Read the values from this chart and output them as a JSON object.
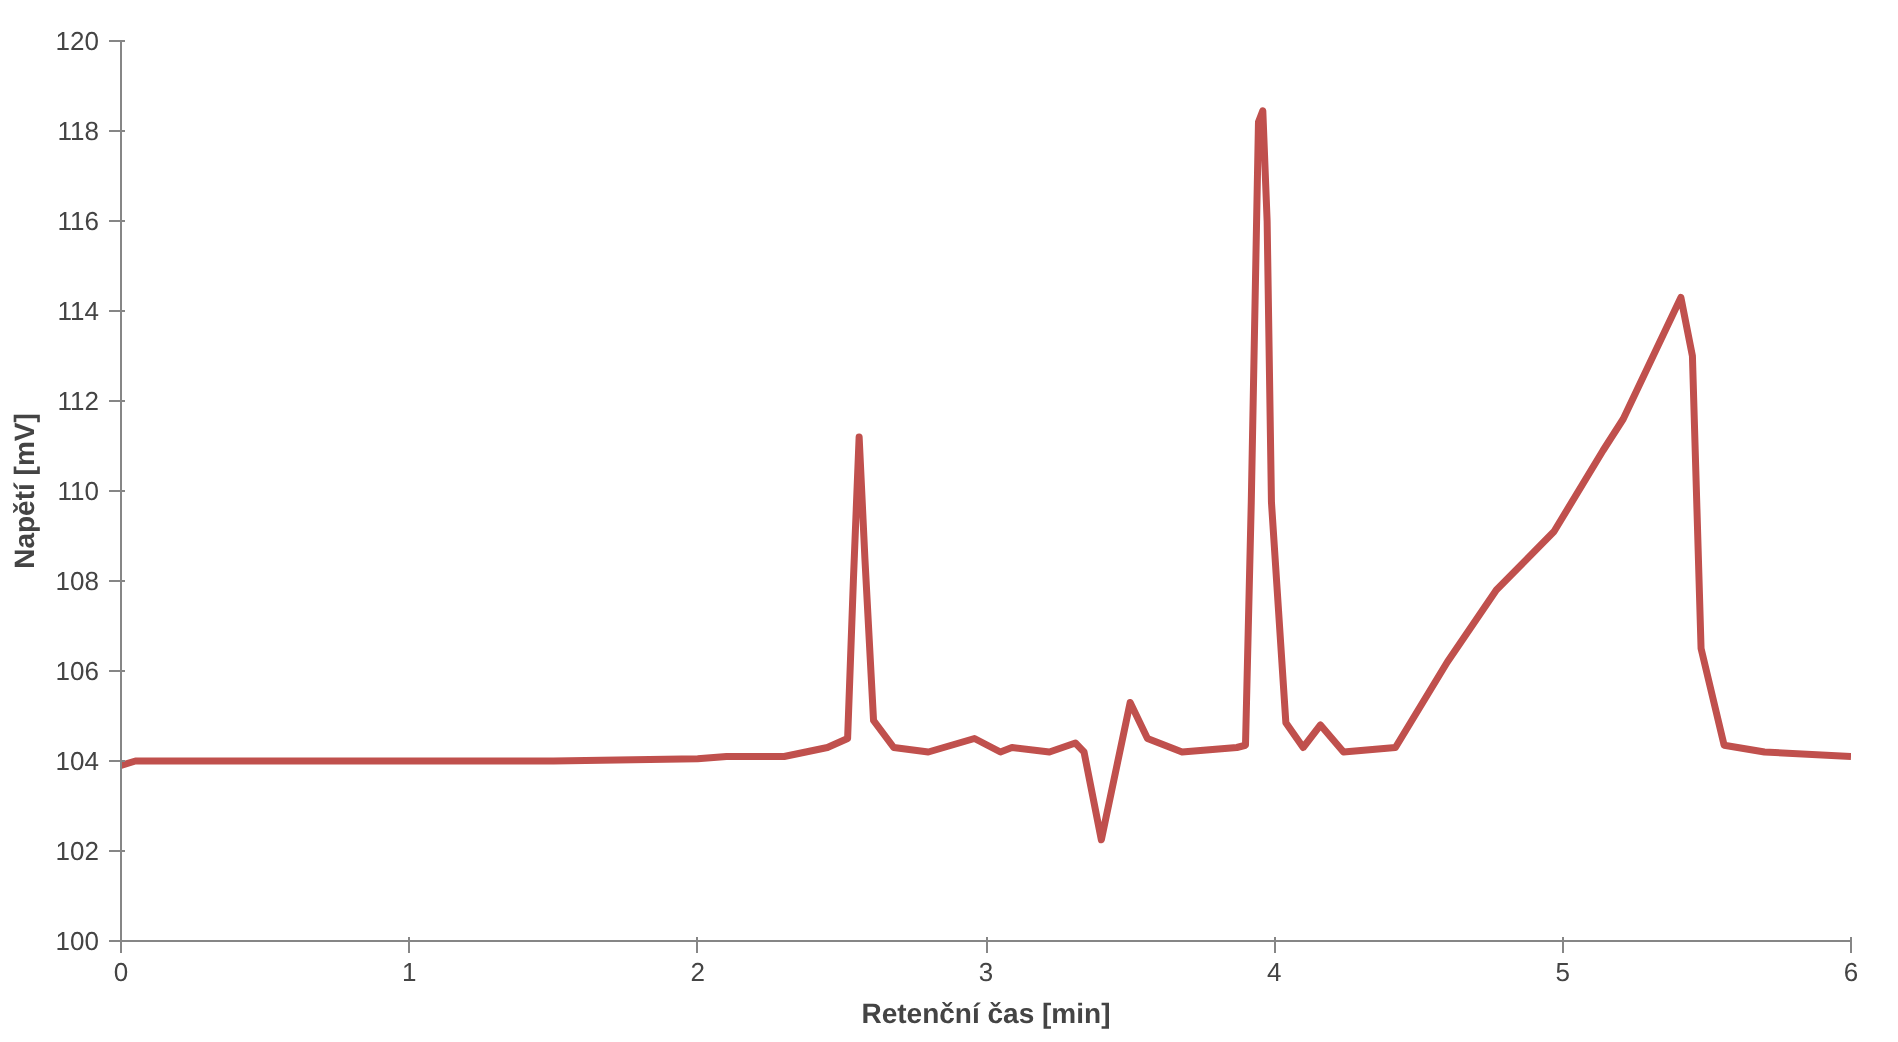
{
  "chart_data": {
    "type": "line",
    "xlabel": "Retenční čas [min]",
    "ylabel": "Napětí [mV]",
    "x": [
      0,
      0.05,
      0.5,
      1.0,
      1.5,
      2.0,
      2.1,
      2.3,
      2.45,
      2.52,
      2.54,
      2.56,
      2.58,
      2.61,
      2.68,
      2.8,
      2.96,
      3.05,
      3.09,
      3.22,
      3.31,
      3.34,
      3.4,
      3.5,
      3.56,
      3.68,
      3.87,
      3.9,
      3.92,
      3.945,
      3.96,
      3.975,
      3.99,
      4.04,
      4.1,
      4.16,
      4.24,
      4.42,
      4.6,
      4.77,
      4.97,
      5.14,
      5.21,
      5.41,
      5.45,
      5.48,
      5.56,
      5.7,
      6.0
    ],
    "series": [
      {
        "color": "#c0504d",
        "values": [
          103.9,
          104.0,
          104.0,
          104.0,
          104.0,
          104.05,
          104.1,
          104.1,
          104.3,
          104.5,
          108.0,
          111.2,
          108.5,
          104.9,
          104.3,
          104.2,
          104.5,
          104.2,
          104.3,
          104.2,
          104.4,
          104.2,
          102.25,
          105.3,
          104.5,
          104.2,
          104.3,
          104.35,
          109.75,
          118.2,
          118.45,
          116.0,
          109.75,
          104.85,
          104.3,
          104.8,
          104.2,
          104.3,
          106.2,
          107.8,
          109.1,
          110.9,
          111.6,
          114.3,
          113.0,
          106.5,
          104.35,
          104.2,
          104.1
        ]
      }
    ],
    "xlim": [
      0,
      6
    ],
    "xticks": [
      0,
      1,
      2,
      3,
      4,
      5,
      6
    ],
    "ylim": [
      100,
      120
    ],
    "yticks": [
      100,
      102,
      104,
      106,
      108,
      110,
      112,
      114,
      116,
      118,
      120
    ],
    "grid": false,
    "line_style": "solid",
    "marker": "none"
  }
}
